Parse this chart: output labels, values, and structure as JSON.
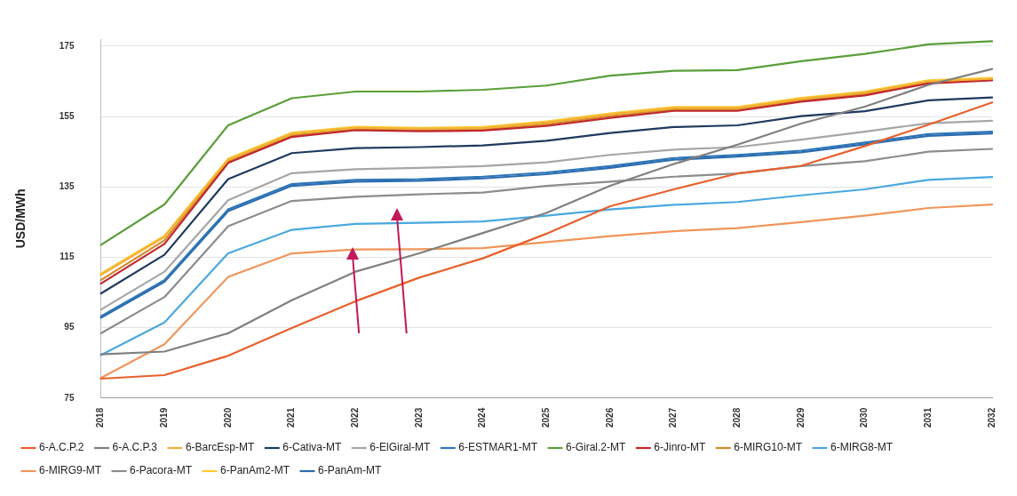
{
  "chart_data": {
    "type": "line",
    "ylabel": "USD/MWh",
    "categories": [
      "2018",
      "2019",
      "2020",
      "2021",
      "2022",
      "2023",
      "2024",
      "2025",
      "2026",
      "2027",
      "2028",
      "2029",
      "2030",
      "2031",
      "2032"
    ],
    "ylim": [
      75,
      177
    ],
    "yticks": [
      75,
      95,
      115,
      135,
      155,
      175
    ],
    "grid": "y",
    "legend": "bottom",
    "marker": "none",
    "line_style": "solid",
    "series": [
      {
        "name": "6-A.C.P.2",
        "color": "#e8602c",
        "values": [
          80.5,
          81.5,
          87,
          94.9,
          102.5,
          109.2,
          114.7,
          121.7,
          129.5,
          134.3,
          138.8,
          141,
          146.6,
          152.7,
          159
        ]
      },
      {
        "name": "6-A.C.P.3",
        "color": "#7f7f7f",
        "values": [
          87.4,
          88.2,
          93.4,
          102.8,
          110.9,
          116.1,
          121.9,
          127.6,
          135.3,
          141.5,
          147,
          153,
          157.8,
          164,
          168.5
        ]
      },
      {
        "name": "6-BarcEsp-MT",
        "color": "#f2b134",
        "values": [
          110,
          120.8,
          142.7,
          150.1,
          151.8,
          151.5,
          151.7,
          153.3,
          155.6,
          157.4,
          157.4,
          160,
          161.8,
          165,
          165.7
        ]
      },
      {
        "name": "6-Cativa-MT",
        "color": "#1f3a5f",
        "values": [
          104.7,
          115.7,
          137.2,
          144.6,
          146,
          146.3,
          146.8,
          148.1,
          150.3,
          152,
          152.5,
          155.1,
          156.5,
          159.6,
          160.4
        ]
      },
      {
        "name": "6-ElGiral-MT",
        "color": "#a6a6a6",
        "values": [
          100.1,
          110.9,
          131.2,
          138.9,
          140,
          140.4,
          140.9,
          142,
          144.1,
          145.6,
          146.3,
          148.4,
          150.7,
          153.1,
          153.8
        ]
      },
      {
        "name": "6-ESTMAR1-MT",
        "color": "#2e75b6",
        "values": [
          98.2,
          108.5,
          128.6,
          135.8,
          137,
          137.2,
          137.9,
          139.1,
          140.9,
          143.2,
          144.1,
          145.3,
          147.6,
          150,
          150.7
        ]
      },
      {
        "name": "6-Giral.2-MT",
        "color": "#5a9e3a",
        "values": [
          118.5,
          130,
          152.5,
          160.2,
          162.1,
          162.1,
          162.6,
          163.8,
          166.6,
          168,
          168.2,
          170.7,
          172.8,
          175.5,
          176.4
        ]
      },
      {
        "name": "6-Jinro-MT",
        "color": "#c0282d",
        "values": [
          107.5,
          118.8,
          141.8,
          149.2,
          151.1,
          150.8,
          151,
          152.3,
          154.6,
          156.6,
          156.6,
          159.2,
          161,
          164.4,
          165.3
        ]
      },
      {
        "name": "6-MIRG10-MT",
        "color": "#d4882a",
        "values": [
          108.5,
          119.8,
          142.2,
          149.6,
          151.4,
          151.1,
          151.3,
          152.8,
          155.1,
          157,
          157,
          159.6,
          161.4,
          164.7,
          165.5
        ]
      },
      {
        "name": "6-MIRG8-MT",
        "color": "#4aa8e0",
        "values": [
          87.2,
          96.5,
          116.1,
          122.8,
          124.5,
          124.8,
          125.2,
          126.8,
          128.6,
          129.9,
          130.7,
          132.6,
          134.3,
          137,
          137.8
        ]
      },
      {
        "name": "6-MIRG9-MT",
        "color": "#f0955a",
        "values": [
          80.7,
          90.3,
          109.4,
          116.1,
          117.2,
          117.3,
          117.6,
          119.3,
          121,
          122.4,
          123.3,
          125,
          126.8,
          129,
          130
        ]
      },
      {
        "name": "6-Pacora-MT",
        "color": "#8c8c8c",
        "values": [
          93.4,
          103.7,
          123.8,
          131,
          132.2,
          132.9,
          133.4,
          135.3,
          136.5,
          137.9,
          138.8,
          140.9,
          142.3,
          145,
          145.8
        ]
      },
      {
        "name": "6-PanAm2-MT",
        "color": "#ffc933",
        "values": [
          110.3,
          121.1,
          143,
          150.4,
          152.1,
          151.8,
          152,
          153.6,
          155.9,
          157.7,
          157.7,
          160.3,
          162.1,
          165.3,
          166
        ]
      },
      {
        "name": "6-PanAm-MT",
        "color": "#2b6cb0",
        "values": [
          97.8,
          108,
          128.1,
          135.3,
          136.5,
          136.7,
          137.4,
          138.6,
          140.4,
          142.7,
          143.6,
          144.8,
          147.1,
          149.5,
          150.2
        ]
      }
    ]
  }
}
